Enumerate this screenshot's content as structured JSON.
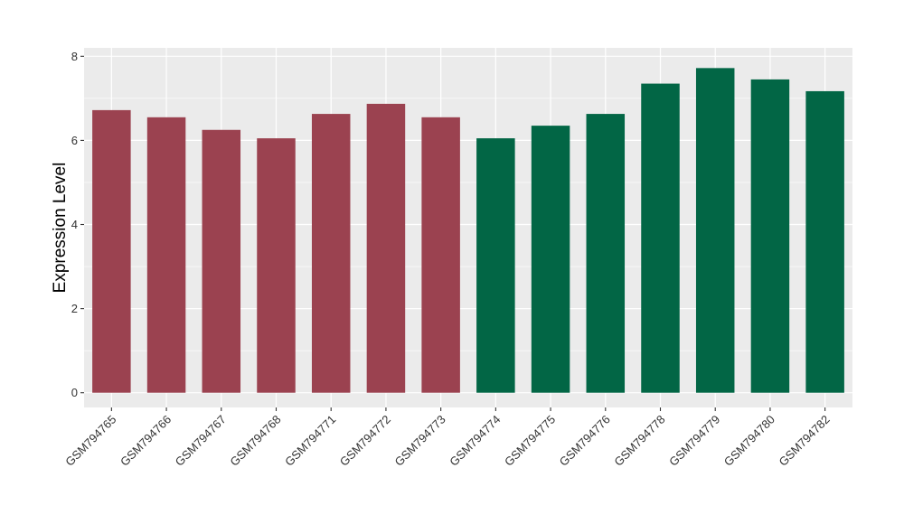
{
  "chart_data": {
    "type": "bar",
    "title": "",
    "xlabel": "",
    "ylabel": "Expression Level",
    "ylim": [
      -0.35,
      8.2
    ],
    "yticks": [
      0,
      2,
      4,
      6,
      8
    ],
    "grid": true,
    "legend": "none",
    "categories": [
      "GSM794765",
      "GSM794766",
      "GSM794767",
      "GSM794768",
      "GSM794771",
      "GSM794772",
      "GSM794773",
      "GSM794774",
      "GSM794775",
      "GSM794776",
      "GSM794778",
      "GSM794779",
      "GSM794780",
      "GSM794782"
    ],
    "values": [
      6.72,
      6.55,
      6.25,
      6.05,
      6.63,
      6.87,
      6.55,
      6.05,
      6.35,
      6.63,
      7.35,
      7.72,
      7.45,
      7.17
    ],
    "groups": [
      0,
      0,
      0,
      0,
      0,
      0,
      0,
      1,
      1,
      1,
      1,
      1,
      1,
      1
    ],
    "group_colors": [
      "#9b4250",
      "#026645"
    ],
    "panel_color": "#ebebeb",
    "grid_color": "#ffffff"
  }
}
